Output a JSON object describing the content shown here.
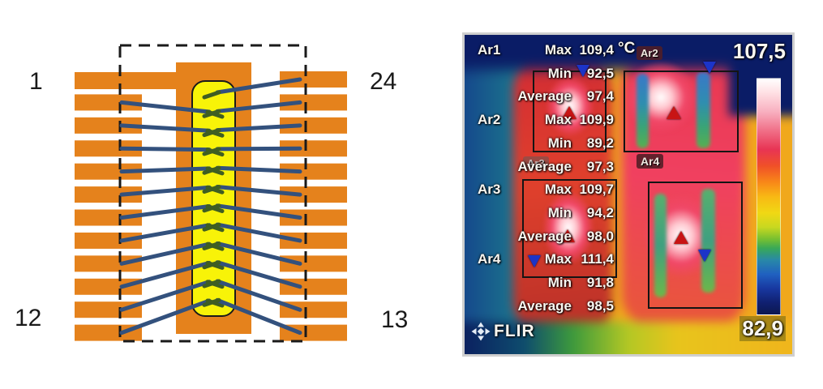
{
  "figure": {
    "left_diagram": {
      "type": "leadframe-wirebond-diagram",
      "pin_top_left": "1",
      "pin_top_right": "24",
      "pin_bottom_left": "12",
      "pin_bottom_right": "13",
      "leads_per_side": 12,
      "left_wires": 11,
      "right_wires": 12,
      "colors": {
        "lead": "#e5821c",
        "die": "#f8f308",
        "wire": "#33517d",
        "stub": "#3f5e22",
        "outline": "#1a1a1a"
      }
    },
    "thermal": {
      "unit": "°C",
      "scale_max": "107,5",
      "scale_min": "82,9",
      "brand": "FLIR",
      "area2_badge": "Ar2",
      "area3_badge": "Ar3",
      "area4_badge": "Ar4",
      "readings": [
        {
          "area": "Ar1",
          "label": "Max",
          "value": "109,4"
        },
        {
          "area": "",
          "label": "Min",
          "value": "92,5"
        },
        {
          "area": "",
          "label": "Average",
          "value": "97,4"
        },
        {
          "area": "Ar2",
          "label": "Max",
          "value": "109,9"
        },
        {
          "area": "",
          "label": "Min",
          "value": "89,2"
        },
        {
          "area": "",
          "label": "Average",
          "value": "97,3"
        },
        {
          "area": "Ar3",
          "label": "Max",
          "value": "109,7"
        },
        {
          "area": "",
          "label": "Min",
          "value": "94,2"
        },
        {
          "area": "",
          "label": "Average",
          "value": "98,0"
        },
        {
          "area": "Ar4",
          "label": "Max",
          "value": "111,4"
        },
        {
          "area": "",
          "label": "Min",
          "value": "91,8"
        },
        {
          "area": "",
          "label": "Average",
          "value": "98,5"
        }
      ]
    }
  }
}
